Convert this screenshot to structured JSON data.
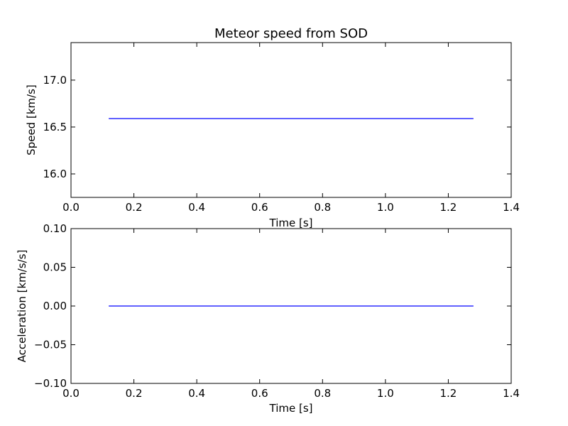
{
  "chart_data": [
    {
      "type": "line",
      "title": "Meteor speed from  SOD",
      "xlabel": "Time [s]",
      "ylabel": "Speed [km/s]",
      "xlim": [
        0.0,
        1.4
      ],
      "ylim": [
        15.75,
        17.4
      ],
      "xticks": [
        0.0,
        0.2,
        0.4,
        0.6,
        0.8,
        1.0,
        1.2,
        1.4
      ],
      "xtick_labels": [
        "0.0",
        "0.2",
        "0.4",
        "0.6",
        "0.8",
        "1.0",
        "1.2",
        "1.4"
      ],
      "yticks": [
        16.0,
        16.5,
        17.0
      ],
      "ytick_labels": [
        "16.0",
        "16.5",
        "17.0"
      ],
      "grid": false,
      "series": [
        {
          "x": [
            0.12,
            1.28
          ],
          "y": [
            16.59,
            16.59
          ],
          "color": "#0000ff"
        }
      ]
    },
    {
      "type": "line",
      "title": "",
      "xlabel": "Time [s]",
      "ylabel": "Acceleration [km/s/s]",
      "xlim": [
        0.0,
        1.4
      ],
      "ylim": [
        -0.1,
        0.1
      ],
      "xticks": [
        0.0,
        0.2,
        0.4,
        0.6,
        0.8,
        1.0,
        1.2,
        1.4
      ],
      "xtick_labels": [
        "0.0",
        "0.2",
        "0.4",
        "0.6",
        "0.8",
        "1.0",
        "1.2",
        "1.4"
      ],
      "yticks": [
        -0.1,
        -0.05,
        0.0,
        0.05,
        0.1
      ],
      "ytick_labels": [
        "−0.10",
        "−0.05",
        "0.00",
        "0.05",
        "0.10"
      ],
      "grid": false,
      "series": [
        {
          "x": [
            0.12,
            1.28
          ],
          "y": [
            0.0,
            0.0
          ],
          "color": "#0000ff"
        }
      ]
    }
  ]
}
